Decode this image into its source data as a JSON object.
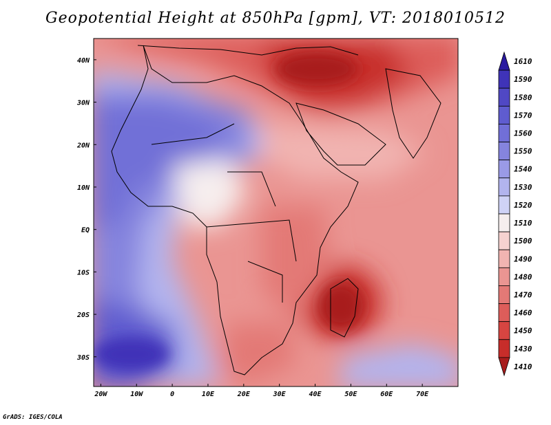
{
  "title": "Geopotential Height at 850hPa [gpm], VT: 2018010512",
  "credit": "GrADS: IGES/COLA",
  "lat_labels": [
    "40N",
    "30N",
    "20N",
    "10N",
    "EQ",
    "10S",
    "20S",
    "30S"
  ],
  "lat_values": [
    40,
    30,
    20,
    10,
    0,
    -10,
    -20,
    -30
  ],
  "lon_labels": [
    "20W",
    "10W",
    "0",
    "10E",
    "20E",
    "30E",
    "40E",
    "50E",
    "60E",
    "70E"
  ],
  "lon_values": [
    -20,
    -10,
    0,
    10,
    20,
    30,
    40,
    50,
    60,
    70
  ],
  "colorbar": {
    "labels": [
      "1610",
      "1590",
      "1580",
      "1570",
      "1560",
      "1550",
      "1540",
      "1530",
      "1520",
      "1510",
      "1500",
      "1490",
      "1480",
      "1470",
      "1460",
      "1450",
      "1430",
      "1410"
    ],
    "colors": [
      "#2a1aa0",
      "#3f33b8",
      "#5048c4",
      "#5f5ccf",
      "#716fd7",
      "#8584de",
      "#9a9ae6",
      "#b2b4ee",
      "#cfd2f6",
      "#f6eeee",
      "#f6d2d0",
      "#f1b4b1",
      "#ea9592",
      "#e37976",
      "#dd5d5a",
      "#d74541",
      "#c72d2a",
      "#a81d1d"
    ]
  },
  "map_extent": {
    "lon": [
      -22,
      80
    ],
    "lat": [
      -37,
      45
    ]
  },
  "features": {
    "warm_high_north": "Mediterranean / Middle East low heights",
    "madagascar_low": "Mozambique Channel low",
    "atlantic_high": "Saharan / Atlantic high"
  }
}
